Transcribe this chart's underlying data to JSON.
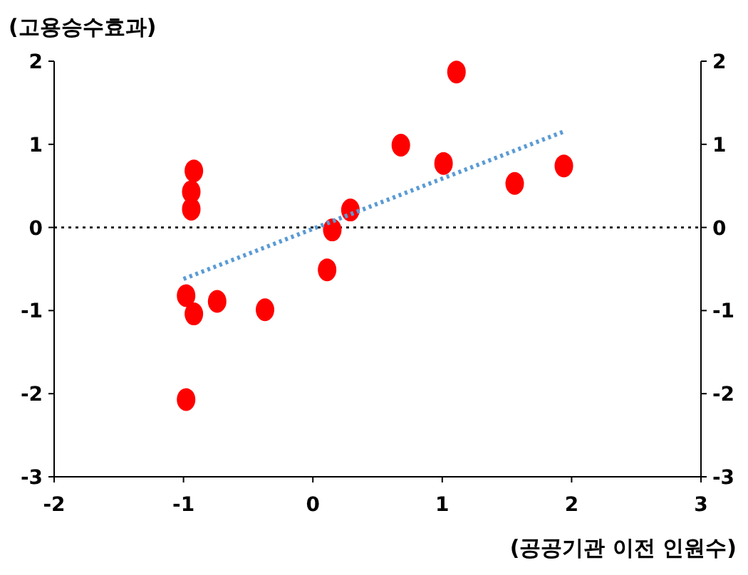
{
  "chart_data": {
    "type": "scatter",
    "ylabel": "(고용승수효과)",
    "xlabel": "(공공기관 이전 인원수)",
    "xlim": [
      -2,
      3
    ],
    "xticks": [
      -2,
      -1,
      0,
      1,
      2,
      3
    ],
    "ylim": [
      -3,
      2
    ],
    "yticks": [
      -3,
      -2,
      -1,
      0,
      1,
      2
    ],
    "y2lim": [
      -3,
      2
    ],
    "y2ticks": [
      -3,
      -2,
      -1,
      0,
      1,
      2
    ],
    "grid": false,
    "marker": "circle",
    "series": [
      {
        "color": "#ff0000",
        "x": [
          -0.92,
          -0.94,
          -0.94,
          -0.98,
          -0.92,
          -0.74,
          -0.37,
          -0.98,
          0.11,
          0.15,
          0.29,
          0.68,
          1.11,
          1.01,
          1.56,
          1.94
        ],
        "values": [
          0.68,
          0.43,
          0.22,
          -0.82,
          -1.04,
          -0.89,
          -0.99,
          -2.07,
          -0.51,
          -0.03,
          0.21,
          0.99,
          1.87,
          0.77,
          0.53,
          0.74
        ]
      },
      {
        "type": "line",
        "color": "#5b9bd5",
        "line_style": "dotted",
        "marker": "none",
        "x": [
          -1.0,
          1.95
        ],
        "values": [
          -0.62,
          1.16
        ]
      }
    ],
    "ref_lines": [
      {
        "axis": "y",
        "value": 0,
        "color": "#000000",
        "line_style": "dotted"
      }
    ]
  }
}
